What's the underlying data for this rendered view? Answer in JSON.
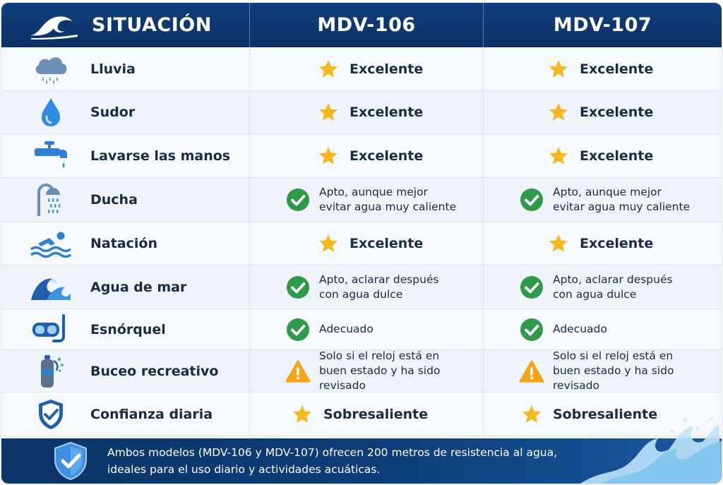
{
  "header": {
    "situation_label": "SITUACIÓN",
    "model_a": "MDV-106",
    "model_b": "MDV-107"
  },
  "colors": {
    "header_bg": "#0b3166",
    "star": "#f6b820",
    "check": "#2e9a4a",
    "warning": "#f4a51c",
    "icon_blue": "#2f7fd1"
  },
  "rows": [
    {
      "icon": "rain-cloud-icon",
      "label": "Lluvia",
      "a": {
        "type": "star",
        "text": "Excelente"
      },
      "b": {
        "type": "star",
        "text": "Excelente"
      }
    },
    {
      "icon": "water-drop-icon",
      "label": "Sudor",
      "a": {
        "type": "star",
        "text": "Excelente"
      },
      "b": {
        "type": "star",
        "text": "Excelente"
      }
    },
    {
      "icon": "faucet-icon",
      "label": "Lavarse las manos",
      "a": {
        "type": "star",
        "text": "Excelente"
      },
      "b": {
        "type": "star",
        "text": "Excelente"
      }
    },
    {
      "icon": "shower-icon",
      "label": "Ducha",
      "a": {
        "type": "check",
        "line1": "Apto, aunque mejor",
        "line2": "evitar agua muy caliente"
      },
      "b": {
        "type": "check",
        "line1": "Apto, aunque mejor",
        "line2": "evitar agua muy caliente"
      }
    },
    {
      "icon": "swimmer-icon",
      "label": "Natación",
      "a": {
        "type": "star",
        "text": "Excelente"
      },
      "b": {
        "type": "star",
        "text": "Excelente"
      }
    },
    {
      "icon": "sea-wave-icon",
      "label": "Agua de mar",
      "a": {
        "type": "check",
        "line1": "Apto, aclarar después",
        "line2": "con agua dulce"
      },
      "b": {
        "type": "check",
        "line1": "Apto, aclarar después",
        "line2": "con agua dulce"
      }
    },
    {
      "icon": "snorkel-mask-icon",
      "label": "Esnórquel",
      "a": {
        "type": "check",
        "text": "Adecuado"
      },
      "b": {
        "type": "check",
        "text": "Adecuado"
      }
    },
    {
      "icon": "scuba-tank-icon",
      "label": "Buceo recreativo",
      "a": {
        "type": "warning",
        "line1": "Solo si el reloj está en",
        "line2": "buen estado y ha sido revisado"
      },
      "b": {
        "type": "warning",
        "line1": "Solo si el reloj está en",
        "line2": "buen estado y ha sido revisado"
      }
    },
    {
      "icon": "shield-check-icon",
      "label": "Confianza diaria",
      "a": {
        "type": "star",
        "text": "Sobresaliente"
      },
      "b": {
        "type": "star",
        "text": "Sobresaliente"
      }
    }
  ],
  "footer": {
    "line1": "Ambos modelos (MDV-106 y MDV-107) ofrecen 200 metros de resistencia al agua,",
    "line2": "ideales para el uso diario y actividades acuáticas."
  }
}
